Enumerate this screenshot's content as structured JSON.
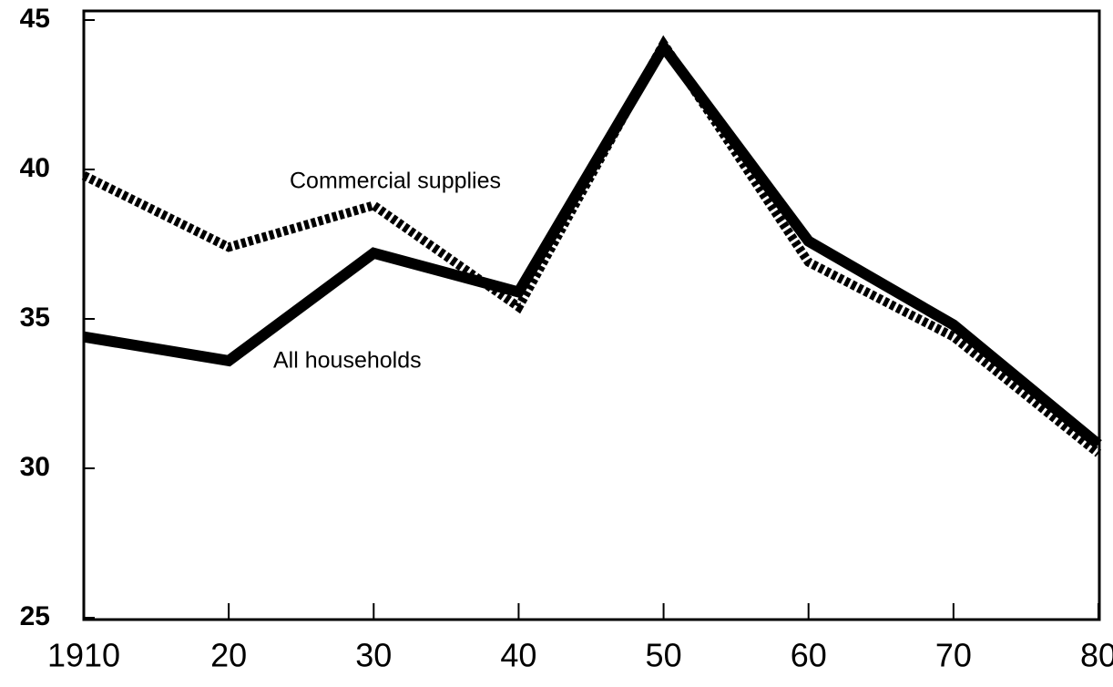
{
  "chart_data": {
    "type": "line",
    "categories": [
      "1910",
      "20",
      "30",
      "40",
      "50",
      "60",
      "70",
      "80"
    ],
    "series": [
      {
        "name": "All households",
        "color": "#000000",
        "style": "solid",
        "values": [
          34.4,
          33.6,
          37.2,
          35.9,
          44.1,
          37.6,
          34.8,
          30.8
        ]
      },
      {
        "name": "Commercial supplies",
        "color": "#000000",
        "style": "dotted",
        "values": [
          39.8,
          37.4,
          38.8,
          35.4,
          44.2,
          36.9,
          34.4,
          30.5
        ]
      }
    ],
    "ylim": [
      25,
      45
    ],
    "yticks": [
      25,
      30,
      35,
      40,
      45
    ],
    "grid": false
  }
}
